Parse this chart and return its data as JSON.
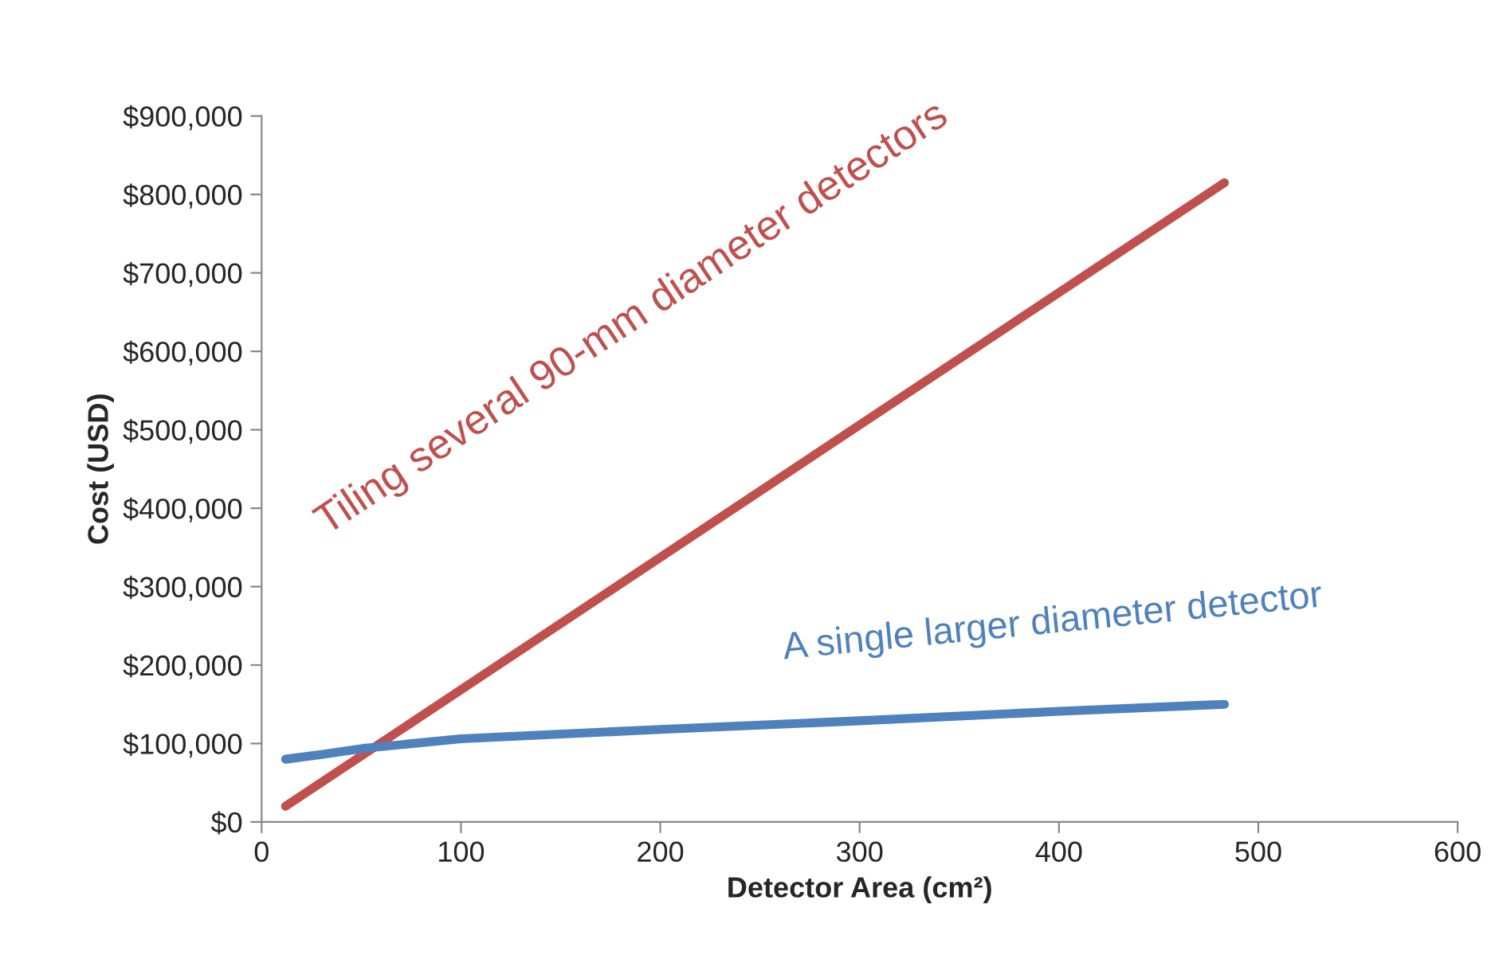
{
  "chart_data": {
    "type": "line",
    "xlabel": "Detector Area (cm²)",
    "ylabel": "Cost (USD)",
    "series": [
      {
        "name": "Tiling several 90-mm diameter detectors",
        "color": "#c0504d",
        "x": [
          12,
          483
        ],
        "values": [
          20000,
          815000
        ]
      },
      {
        "name": "A single larger diameter detector",
        "color": "#4f81bd",
        "x": [
          12,
          30,
          52,
          100,
          200,
          300,
          400,
          483
        ],
        "values": [
          80000,
          86000,
          94000,
          106000,
          118000,
          129000,
          141000,
          150000
        ]
      }
    ],
    "xlim": [
      0,
      600
    ],
    "xticks": [
      0,
      100,
      200,
      300,
      400,
      500,
      600
    ],
    "ylim": [
      0,
      900000
    ],
    "yticks": [
      {
        "value": 0,
        "label": "$0"
      },
      {
        "value": 100000,
        "label": "$100,000"
      },
      {
        "value": 200000,
        "label": "$200,000"
      },
      {
        "value": 300000,
        "label": "$300,000"
      },
      {
        "value": 400000,
        "label": "$400,000"
      },
      {
        "value": 500000,
        "label": "$500,000"
      },
      {
        "value": 600000,
        "label": "$600,000"
      },
      {
        "value": 700000,
        "label": "$700,000"
      },
      {
        "value": 800000,
        "label": "$800,000"
      },
      {
        "value": 900000,
        "label": "$900,000"
      }
    ],
    "grid": false,
    "legend": false,
    "marker": "none",
    "line_style": "solid"
  }
}
